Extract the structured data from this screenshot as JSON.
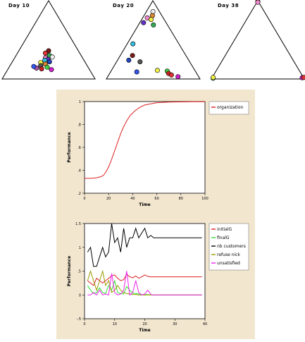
{
  "triangles": [
    {
      "label": "Day 10",
      "markers": [
        {
          "a": 0.36,
          "b": 0.32,
          "color": "#7a1a1a"
        },
        {
          "a": 0.33,
          "b": 0.3,
          "color": "#dd3333"
        },
        {
          "a": 0.3,
          "b": 0.36,
          "color": "#33aa55"
        },
        {
          "a": 0.28,
          "b": 0.4,
          "color": "#eeeeee"
        },
        {
          "a": 0.27,
          "b": 0.33,
          "color": "#ee88cc"
        },
        {
          "a": 0.25,
          "b": 0.37,
          "color": "#6633cc"
        },
        {
          "a": 0.24,
          "b": 0.34,
          "color": "#33bbdd"
        },
        {
          "a": 0.22,
          "b": 0.4,
          "color": "#2244bb"
        },
        {
          "a": 0.21,
          "b": 0.31,
          "color": "#eeee44"
        },
        {
          "a": 0.19,
          "b": 0.37,
          "color": "#dd8833"
        },
        {
          "a": 0.17,
          "b": 0.33,
          "color": "#555555"
        },
        {
          "a": 0.15,
          "b": 0.41,
          "color": "#44cc44"
        },
        {
          "a": 0.14,
          "b": 0.3,
          "color": "#aa55aa"
        },
        {
          "a": 0.13,
          "b": 0.36,
          "color": "#cc2222"
        },
        {
          "a": 0.12,
          "b": 0.47,
          "color": "#cc22cc"
        },
        {
          "a": 0.16,
          "b": 0.26,
          "color": "#3355ee"
        }
      ]
    },
    {
      "label": "Day 20",
      "markers": [
        {
          "a": 0.86,
          "b": 0.07,
          "color": "#eeeeee"
        },
        {
          "a": 0.81,
          "b": 0.09,
          "color": "#dd8833"
        },
        {
          "a": 0.78,
          "b": 0.05,
          "color": "#ee88cc"
        },
        {
          "a": 0.76,
          "b": 0.1,
          "color": "#eeee44"
        },
        {
          "a": 0.72,
          "b": 0.04,
          "color": "#6633cc"
        },
        {
          "a": 0.69,
          "b": 0.16,
          "color": "#33aa55"
        },
        {
          "a": 0.45,
          "b": 0.06,
          "color": "#33bbdd"
        },
        {
          "a": 0.3,
          "b": 0.13,
          "color": "#7a1a1a"
        },
        {
          "a": 0.24,
          "b": 0.12,
          "color": "#2244bb"
        },
        {
          "a": 0.22,
          "b": 0.25,
          "color": "#555555"
        },
        {
          "a": 0.11,
          "b": 0.49,
          "color": "#eeee44"
        },
        {
          "a": 0.1,
          "b": 0.6,
          "color": "#44cc44"
        },
        {
          "a": 0.07,
          "b": 0.63,
          "color": "#cc2222"
        },
        {
          "a": 0.05,
          "b": 0.67,
          "color": "#dd3333"
        },
        {
          "a": 0.03,
          "b": 0.75,
          "color": "#cc22cc"
        },
        {
          "a": 0.09,
          "b": 0.28,
          "color": "#3355ee"
        }
      ]
    },
    {
      "label": "Day 38",
      "markers": [
        {
          "a": 0.99,
          "b": 0.005,
          "color": "#dd8833"
        },
        {
          "a": 0.98,
          "b": 0.01,
          "color": "#ee88cc"
        },
        {
          "a": 0.01,
          "b": 0.015,
          "color": "#33aa55"
        },
        {
          "a": 0.02,
          "b": 0.01,
          "color": "#eeee44"
        },
        {
          "a": 0.015,
          "b": 0.97,
          "color": "#cc22cc"
        },
        {
          "a": 0.02,
          "b": 0.985,
          "color": "#dd3333"
        }
      ]
    }
  ],
  "chart_data": [
    {
      "type": "line",
      "xlabel": "Time",
      "ylabel": "Performance",
      "xlim": [
        0,
        100
      ],
      "ylim": [
        0.2,
        1.0
      ],
      "xticks": [
        0,
        20,
        40,
        60,
        80,
        100
      ],
      "yticks": [
        0.2,
        0.4,
        0.6,
        0.8,
        1.0
      ],
      "xtick_labels": [
        "0",
        "20",
        "40",
        "60",
        "80",
        "100"
      ],
      "ytick_labels": [
        ".2",
        ".4",
        ".6",
        ".8",
        "1"
      ],
      "series": [
        {
          "name": "organization",
          "color": "#e02020",
          "x": [
            0,
            5,
            10,
            14,
            16,
            18,
            20,
            22,
            24,
            26,
            28,
            30,
            32,
            35,
            38,
            42,
            46,
            50,
            55,
            60,
            70,
            80,
            90,
            100
          ],
          "y": [
            0.33,
            0.33,
            0.335,
            0.345,
            0.36,
            0.39,
            0.43,
            0.48,
            0.54,
            0.6,
            0.66,
            0.72,
            0.77,
            0.83,
            0.88,
            0.92,
            0.95,
            0.97,
            0.98,
            0.99,
            0.995,
            0.997,
            0.998,
            0.998
          ]
        }
      ]
    },
    {
      "type": "line",
      "xlabel": "Time",
      "ylabel": "Performance",
      "xlim": [
        0,
        40
      ],
      "ylim": [
        -5,
        15
      ],
      "xticks": [
        0,
        10,
        20,
        30,
        40
      ],
      "yticks": [
        -5,
        0,
        5,
        10,
        15
      ],
      "xtick_labels": [
        "0",
        "10",
        "20",
        "30",
        "40"
      ],
      "ytick_labels": [
        "-.5",
        "0",
        ".5",
        "1",
        "1.5"
      ],
      "series": [
        {
          "name": "initialG",
          "color": "#e02020",
          "x": [
            1,
            2,
            3,
            4,
            5,
            6,
            7,
            8,
            9,
            10,
            11,
            12,
            13,
            14,
            15,
            16,
            17,
            18,
            19,
            20,
            21,
            22,
            23,
            25,
            30,
            35,
            39
          ],
          "y": [
            3,
            2.5,
            2,
            3.5,
            3,
            2.5,
            3,
            3.5,
            4,
            4.2,
            3.5,
            3,
            3.2,
            4.4,
            3.8,
            3.6,
            4.0,
            3.5,
            3.8,
            4.2,
            3.9,
            3.8,
            3.8,
            3.8,
            3.8,
            3.8,
            3.8
          ]
        },
        {
          "name": "finalG",
          "color": "#33dd33",
          "x": [
            1,
            2,
            3,
            4,
            5,
            6,
            7,
            8,
            9,
            10,
            11,
            12,
            13,
            14,
            15,
            16,
            17,
            18,
            19,
            20,
            21,
            22,
            23,
            30,
            39
          ],
          "y": [
            2,
            1,
            0.3,
            0.5,
            1.5,
            0.5,
            0.3,
            2,
            1,
            3,
            0.5,
            0.3,
            0.2,
            1.8,
            1,
            0.4,
            0.3,
            0.2,
            0.1,
            0.1,
            0.1,
            0,
            0,
            0,
            0
          ]
        },
        {
          "name": "nb customers",
          "color": "#000000",
          "x": [
            1,
            2,
            3,
            4,
            5,
            6,
            7,
            8,
            9,
            10,
            11,
            12,
            13,
            14,
            15,
            16,
            17,
            18,
            19,
            20,
            21,
            22,
            23,
            25,
            30,
            35,
            39
          ],
          "y": [
            9,
            10,
            6,
            6,
            8,
            10,
            8,
            9,
            15,
            11,
            12,
            9,
            14,
            10,
            12,
            12,
            14,
            12,
            13,
            14,
            12,
            12.5,
            12,
            12,
            12,
            12,
            12
          ]
        },
        {
          "name": "refuse nick",
          "color": "#999900",
          "x": [
            1,
            2,
            3,
            4,
            5,
            6,
            7,
            8,
            9,
            10,
            11,
            12,
            13,
            14,
            15,
            16,
            17,
            18,
            19,
            20,
            21,
            22,
            23,
            30,
            39
          ],
          "y": [
            3,
            5,
            3,
            1,
            3,
            5,
            2,
            3,
            0.5,
            1,
            2,
            1,
            0.5,
            0.3,
            0.2,
            0.1,
            0.1,
            0,
            0,
            0,
            0,
            0,
            0,
            0,
            0
          ]
        },
        {
          "name": "unsatisfied",
          "color": "#ee22ee",
          "x": [
            1,
            2,
            3,
            4,
            5,
            6,
            7,
            8,
            9,
            10,
            11,
            12,
            13,
            14,
            15,
            16,
            17,
            18,
            19,
            20,
            21,
            22,
            23,
            30,
            39
          ],
          "y": [
            0,
            0,
            0.5,
            0,
            1,
            0,
            0.2,
            0,
            4.5,
            0.5,
            0,
            0.2,
            1,
            5,
            0,
            0.5,
            3,
            0.5,
            0,
            0.2,
            1,
            0.1,
            0,
            0,
            0
          ]
        }
      ]
    }
  ]
}
